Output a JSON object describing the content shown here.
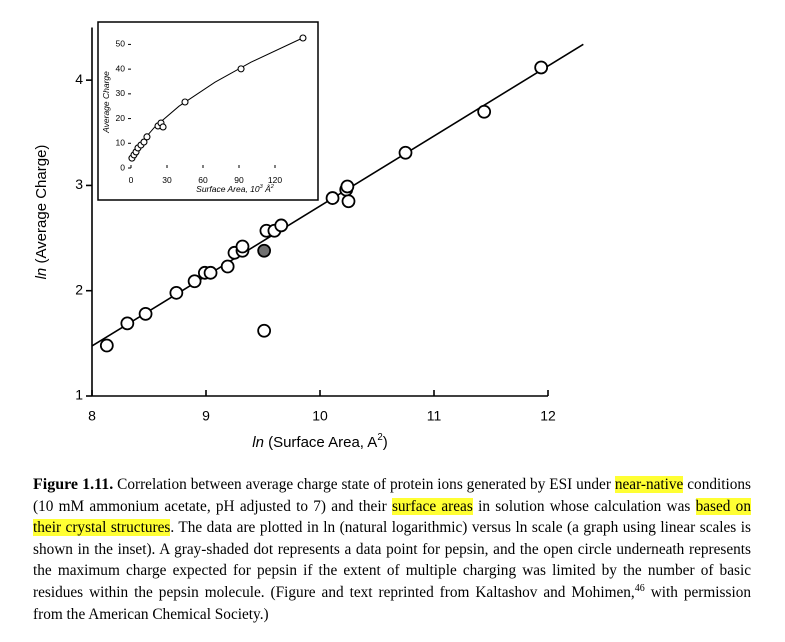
{
  "chart_data": [
    {
      "type": "scatter",
      "xlabel": [
        {
          "text": "ln",
          "italic": true
        },
        {
          "text": " (Surface Area, A"
        },
        {
          "text": "2",
          "sup": true
        },
        {
          "text": ")"
        }
      ],
      "ylabel": [
        {
          "text": "ln",
          "italic": true
        },
        {
          "text": " (Average Charge)"
        }
      ],
      "xlim": [
        8,
        12
      ],
      "ylim": [
        1,
        4.5
      ],
      "xticks": [
        8,
        9,
        10,
        11,
        12
      ],
      "yticks": [
        1,
        2,
        3,
        4
      ],
      "series": [
        {
          "color": "#ffffff",
          "x": [
            8.13,
            8.31,
            8.47,
            8.74,
            8.9,
            8.99,
            9.04,
            9.19,
            9.25,
            9.32,
            9.32,
            9.53,
            9.6,
            9.66,
            9.51,
            10.11,
            10.23,
            10.24,
            10.25,
            10.75,
            11.44,
            11.94
          ],
          "values": [
            1.48,
            1.69,
            1.78,
            1.98,
            2.09,
            2.17,
            2.17,
            2.23,
            2.36,
            2.38,
            2.42,
            2.57,
            2.57,
            2.62,
            1.62,
            2.88,
            2.96,
            2.99,
            2.85,
            3.31,
            3.7,
            4.12
          ]
        },
        {
          "color": "#707070",
          "x": [
            9.51
          ],
          "values": [
            2.38
          ]
        }
      ],
      "fit": {
        "x": [
          8,
          12.31
        ],
        "values": [
          1.475,
          4.34
        ]
      }
    },
    {
      "type": "scatter",
      "xlabel": [
        {
          "text": "Surface Area, 10"
        },
        {
          "text": "3",
          "sup": true
        },
        {
          "text": " Å"
        },
        {
          "text": "2",
          "sup": true
        }
      ],
      "ylabel": [
        {
          "text": "Average Charge",
          "italic": true
        }
      ],
      "xlim": [
        0,
        150
      ],
      "ylim": [
        0,
        53
      ],
      "xticks": [
        0,
        30,
        60,
        90,
        120
      ],
      "yticks": [
        0,
        10,
        20,
        30,
        40,
        50
      ],
      "series": [
        {
          "color": "#ffffff",
          "x": [
            0.8,
            2.5,
            4.2,
            5.8,
            8.3,
            10.8,
            13.3,
            22.5,
            25.0,
            26.7,
            45,
            91.7,
            143.3
          ],
          "values": [
            4.0,
            5.3,
            6.5,
            8.1,
            9.3,
            10.5,
            12.6,
            17.0,
            18.2,
            16.6,
            26.7,
            40.1,
            52.6
          ]
        }
      ],
      "fit": {
        "x": [
          1,
          5,
          10,
          20,
          40,
          70,
          100,
          143
        ],
        "values": [
          2.89,
          7.4,
          11.1,
          16.7,
          25.0,
          34.7,
          42.8,
          52.6
        ]
      }
    }
  ],
  "caption": {
    "runs": [
      {
        "text": "Figure 1.11.",
        "bold": true
      },
      {
        "text": " Correlation between average charge state of protein ions generated by ESI under "
      },
      {
        "text": "near-native",
        "highlight": true
      },
      {
        "text": " conditions (10 mM ammonium acetate, pH adjusted to 7) and their "
      },
      {
        "text": "surface areas",
        "highlight": true
      },
      {
        "text": " in solution whose calculation was "
      },
      {
        "text": "based on their crystal structures",
        "highlight": true
      },
      {
        "text": ". The data are plotted in ln (natural logarithmic) versus ln scale (a graph using linear scales is shown in the inset). A gray-shaded dot represents a data point for pepsin, and the open circle underneath represents the maximum charge expected for pepsin if the extent of multiple charging was limited by the number of basic residues within the pepsin molecule. (Figure and text reprinted from Kaltashov and Mohimen,"
      },
      {
        "text": "46",
        "sup": true
      },
      {
        "text": " with permission from the American Chemical Society.)"
      }
    ]
  }
}
